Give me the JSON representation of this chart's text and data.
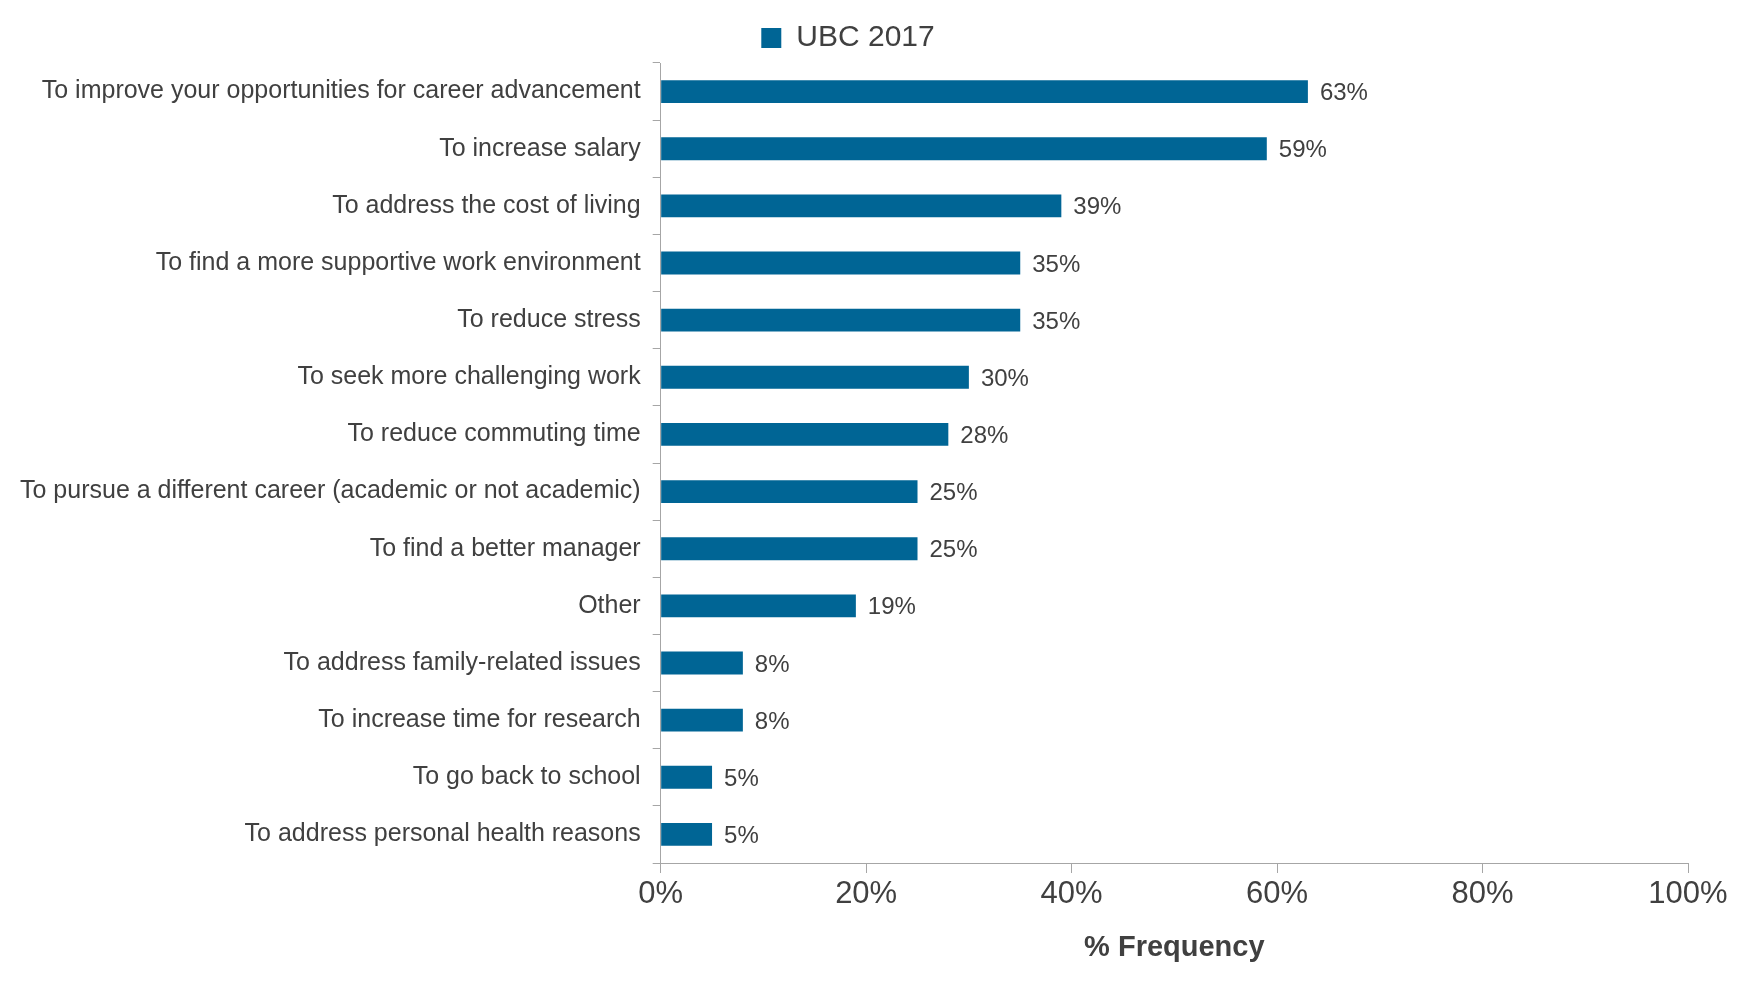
{
  "chart_data": {
    "type": "bar",
    "orientation": "horizontal",
    "xlabel": "% Frequency",
    "legend": "top",
    "grid": false,
    "categories": [
      "To improve your opportunities for career advancement",
      "To increase salary",
      "To address the cost of living",
      "To find a more supportive work environment",
      "To reduce stress",
      "To seek more challenging work",
      "To reduce commuting time",
      "To pursue a different career (academic or not academic)",
      "To find a better manager",
      "Other",
      "To address family-related issues",
      "To increase time for research",
      "To go back to school",
      "To address personal health reasons"
    ],
    "series": [
      {
        "name": "UBC 2017",
        "color": "#006595",
        "values": [
          63,
          59,
          39,
          35,
          35,
          30,
          28,
          25,
          25,
          19,
          8,
          8,
          5,
          5
        ],
        "value_labels": [
          "63%",
          "59%",
          "39%",
          "35%",
          "35%",
          "30%",
          "28%",
          "25%",
          "25%",
          "19%",
          "8%",
          "8%",
          "5%",
          "5%"
        ]
      }
    ],
    "xlim": [
      0,
      100
    ],
    "xticks": [
      {
        "value": 0,
        "label": "0%"
      },
      {
        "value": 20,
        "label": "20%"
      },
      {
        "value": 40,
        "label": "40%"
      },
      {
        "value": 60,
        "label": "60%"
      },
      {
        "value": 80,
        "label": "80%"
      },
      {
        "value": 100,
        "label": "100%"
      }
    ]
  }
}
